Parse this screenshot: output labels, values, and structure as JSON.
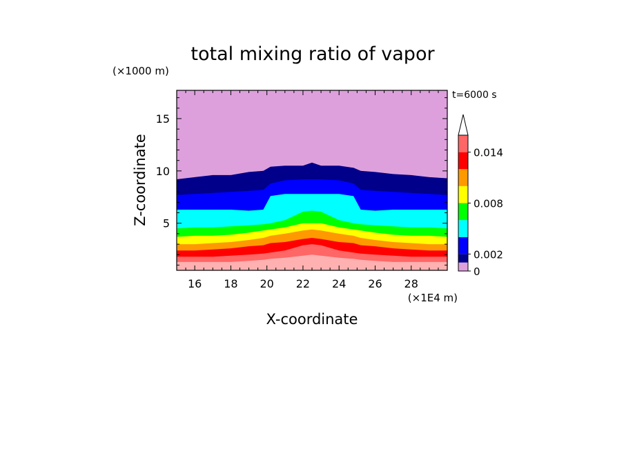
{
  "chart_data": {
    "type": "heatmap",
    "title": "total mixing ratio of vapor",
    "xlabel": "X-coordinate",
    "ylabel": "Z-coordinate",
    "x_unit": "(×1E4 m)",
    "y_unit": "(×1000 m)",
    "time_label": "t=6000 s",
    "xlim": [
      15,
      30
    ],
    "ylim": [
      0.5,
      17.7
    ],
    "x_ticks": [
      "16",
      "18",
      "20",
      "22",
      "24",
      "26",
      "28"
    ],
    "x_tick_values": [
      16,
      18,
      20,
      22,
      24,
      26,
      28
    ],
    "y_ticks": [
      "5",
      "10",
      "15"
    ],
    "y_tick_values": [
      5,
      10,
      15
    ],
    "colorbar": {
      "levels": [
        0,
        0.001,
        0.002,
        0.004,
        0.006,
        0.008,
        0.01,
        0.012,
        0.014,
        0.016
      ],
      "tick_labels": [
        "0",
        "0.002",
        "0.008",
        "0.014"
      ],
      "tick_values": [
        0,
        0.002,
        0.008,
        0.014
      ],
      "colors": [
        "#dda0dd",
        "#00008b",
        "#0000ff",
        "#00ffff",
        "#00ff00",
        "#ffff00",
        "#ff9900",
        "#ff0000",
        "#ff6666",
        "#ffb0b0"
      ],
      "extend": "max"
    },
    "contour_tops": {
      "x": [
        15,
        16,
        17,
        18,
        19,
        19.8,
        20.2,
        21,
        22,
        22.5,
        23,
        24,
        24.8,
        25.2,
        26,
        27,
        28,
        29,
        30
      ],
      "bands": [
        {
          "level": 0,
          "z": [
            9.2,
            9.4,
            9.6,
            9.6,
            9.9,
            10.0,
            10.4,
            10.5,
            10.5,
            10.8,
            10.5,
            10.5,
            10.3,
            10.0,
            9.9,
            9.7,
            9.6,
            9.4,
            9.3
          ]
        },
        {
          "level": 0.001,
          "z": [
            7.7,
            7.8,
            7.9,
            8.0,
            8.1,
            8.2,
            8.8,
            9.1,
            9.2,
            9.2,
            9.2,
            9.1,
            8.8,
            8.2,
            8.1,
            8.0,
            7.9,
            7.8,
            7.7
          ]
        },
        {
          "level": 0.002,
          "z": [
            6.3,
            6.3,
            6.3,
            6.3,
            6.2,
            6.3,
            7.6,
            7.8,
            7.8,
            7.8,
            7.8,
            7.8,
            7.6,
            6.3,
            6.2,
            6.3,
            6.3,
            6.3,
            6.3
          ]
        },
        {
          "level": 0.004,
          "z": [
            4.5,
            4.6,
            4.6,
            4.7,
            4.8,
            4.9,
            5.0,
            5.3,
            6.1,
            6.2,
            6.1,
            5.3,
            5.0,
            4.9,
            4.8,
            4.7,
            4.6,
            4.6,
            4.5
          ]
        },
        {
          "level": 0.006,
          "z": [
            3.7,
            3.8,
            3.8,
            3.9,
            4.1,
            4.3,
            4.4,
            4.6,
            5.0,
            5.0,
            5.0,
            4.6,
            4.4,
            4.3,
            4.1,
            3.9,
            3.8,
            3.8,
            3.7
          ]
        },
        {
          "level": 0.008,
          "z": [
            3.0,
            3.0,
            3.1,
            3.2,
            3.4,
            3.6,
            3.8,
            4.0,
            4.3,
            4.4,
            4.3,
            4.0,
            3.8,
            3.6,
            3.4,
            3.2,
            3.1,
            3.0,
            3.0
          ]
        },
        {
          "level": 0.01,
          "z": [
            2.4,
            2.4,
            2.5,
            2.6,
            2.8,
            2.9,
            3.1,
            3.2,
            3.5,
            3.6,
            3.5,
            3.2,
            3.1,
            2.9,
            2.8,
            2.6,
            2.5,
            2.4,
            2.4
          ]
        },
        {
          "level": 0.012,
          "z": [
            1.8,
            1.8,
            1.8,
            1.9,
            2.0,
            2.1,
            2.2,
            2.4,
            2.9,
            3.0,
            2.9,
            2.4,
            2.2,
            2.1,
            2.0,
            1.9,
            1.8,
            1.8,
            1.8
          ]
        },
        {
          "level": 0.014,
          "z": [
            1.3,
            1.3,
            1.3,
            1.3,
            1.4,
            1.5,
            1.6,
            1.7,
            1.9,
            2.0,
            1.9,
            1.7,
            1.6,
            1.5,
            1.4,
            1.3,
            1.3,
            1.3,
            1.3
          ]
        }
      ]
    }
  }
}
